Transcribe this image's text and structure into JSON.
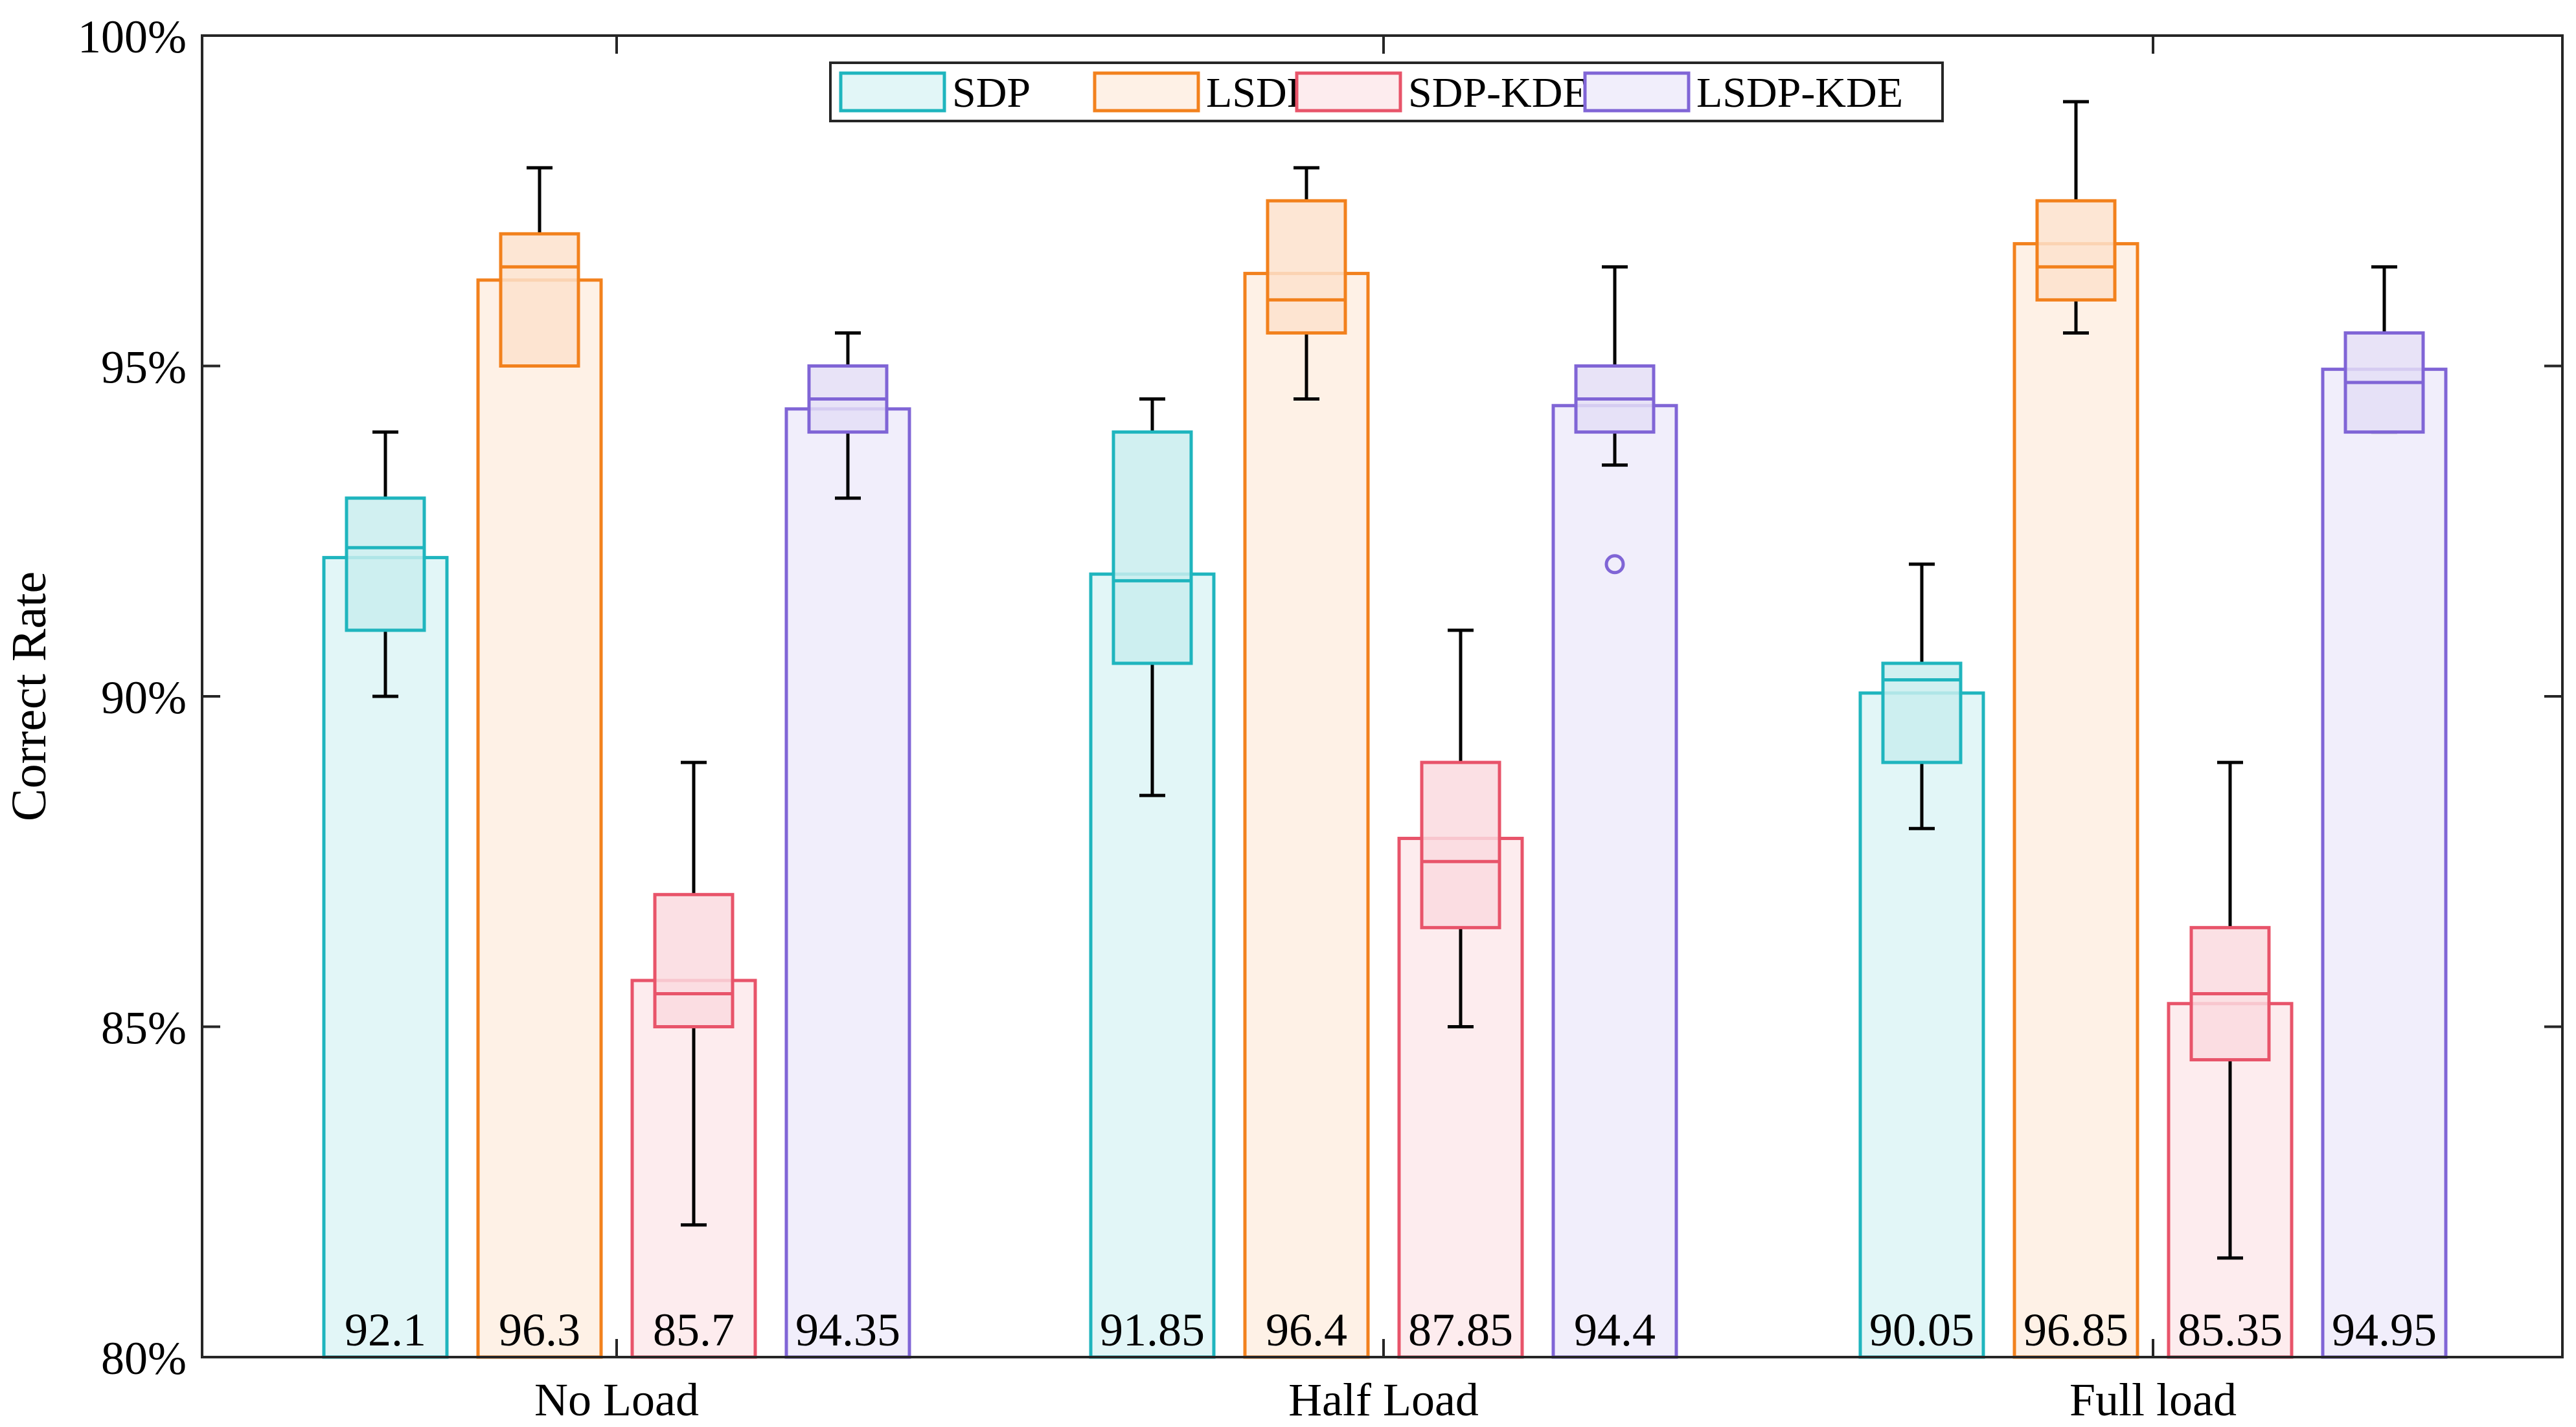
{
  "chart_data": {
    "type": "bar",
    "title": "",
    "xlabel": "",
    "ylabel": "Correct Rate",
    "ylim": [
      80,
      100
    ],
    "yticks": [
      80,
      85,
      90,
      95,
      100
    ],
    "ytick_labels": [
      "80%",
      "85%",
      "90%",
      "95%",
      "100%"
    ],
    "grid": false,
    "legend_position": "top-center",
    "categories": [
      "No Load",
      "Half Load",
      "Full load"
    ],
    "series": [
      {
        "name": "SDP",
        "color": "#1FB5BE",
        "fill": "#E2F6F7",
        "box_fill": "#C9EDEF",
        "values": [
          92.1,
          91.85,
          90.05
        ],
        "value_labels": [
          "92.1",
          "91.85",
          "90.05"
        ],
        "boxes": [
          {
            "whisker_low": 90.0,
            "q1": 91.0,
            "median": 92.25,
            "q3": 93.0,
            "whisker_high": 94.0,
            "outliers": []
          },
          {
            "whisker_low": 88.5,
            "q1": 90.5,
            "median": 91.75,
            "q3": 94.0,
            "whisker_high": 94.5,
            "outliers": []
          },
          {
            "whisker_low": 88.0,
            "q1": 89.0,
            "median": 90.25,
            "q3": 90.5,
            "whisker_high": 92.0,
            "outliers": []
          }
        ]
      },
      {
        "name": "LSDP",
        "color": "#F2811D",
        "fill": "#FEF1E6",
        "box_fill": "#FDE2CC",
        "values": [
          96.3,
          96.4,
          96.85
        ],
        "value_labels": [
          "96.3",
          "96.4",
          "96.85"
        ],
        "boxes": [
          {
            "whisker_low": 95.0,
            "q1": 95.0,
            "median": 96.5,
            "q3": 97.0,
            "whisker_high": 98.0,
            "outliers": []
          },
          {
            "whisker_low": 94.5,
            "q1": 95.5,
            "median": 96.0,
            "q3": 97.5,
            "whisker_high": 98.0,
            "outliers": []
          },
          {
            "whisker_low": 95.5,
            "q1": 96.0,
            "median": 96.5,
            "q3": 97.5,
            "whisker_high": 99.0,
            "outliers": []
          }
        ]
      },
      {
        "name": "SDP-KDE",
        "color": "#E8546A",
        "fill": "#FDECEE",
        "box_fill": "#FADADF",
        "values": [
          85.7,
          87.85,
          85.35
        ],
        "value_labels": [
          "85.7",
          "87.85",
          "85.35"
        ],
        "boxes": [
          {
            "whisker_low": 82.0,
            "q1": 85.0,
            "median": 85.5,
            "q3": 87.0,
            "whisker_high": 89.0,
            "outliers": []
          },
          {
            "whisker_low": 85.0,
            "q1": 86.5,
            "median": 87.5,
            "q3": 89.0,
            "whisker_high": 91.0,
            "outliers": []
          },
          {
            "whisker_low": 81.5,
            "q1": 84.5,
            "median": 85.5,
            "q3": 86.5,
            "whisker_high": 89.0,
            "outliers": []
          }
        ]
      },
      {
        "name": "LSDP-KDE",
        "color": "#8065D6",
        "fill": "#F1EEFB",
        "box_fill": "#E4DEF6",
        "values": [
          94.35,
          94.4,
          94.95
        ],
        "value_labels": [
          "94.35",
          "94.4",
          "94.95"
        ],
        "boxes": [
          {
            "whisker_low": 93.0,
            "q1": 94.0,
            "median": 94.5,
            "q3": 95.0,
            "whisker_high": 95.5,
            "outliers": []
          },
          {
            "whisker_low": 93.5,
            "q1": 94.0,
            "median": 94.5,
            "q3": 95.0,
            "whisker_high": 96.5,
            "outliers": [
              92.0
            ]
          },
          {
            "whisker_low": 94.0,
            "q1": 94.0,
            "median": 94.75,
            "q3": 95.5,
            "whisker_high": 96.5,
            "outliers": []
          }
        ]
      }
    ]
  }
}
